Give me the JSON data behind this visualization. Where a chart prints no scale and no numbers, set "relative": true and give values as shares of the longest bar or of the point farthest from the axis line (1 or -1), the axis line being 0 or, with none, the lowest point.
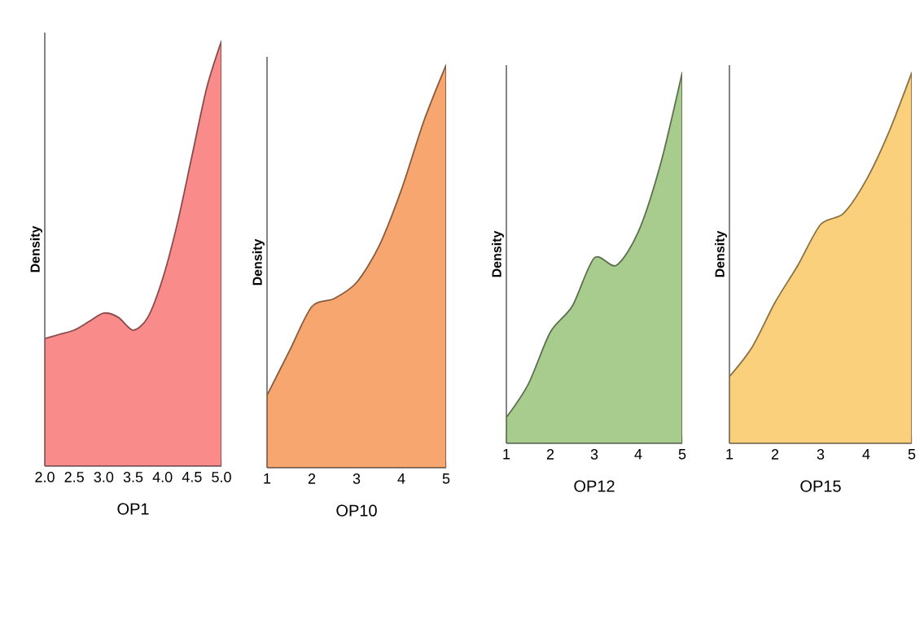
{
  "chart_data": [
    {
      "type": "area",
      "relative": true,
      "xlabel": "OP1",
      "ylabel": "Density",
      "color": "#f98b8b",
      "xlim": [
        2,
        5
      ],
      "xticks": [
        {
          "value": 2,
          "label": "2.0"
        },
        {
          "value": 2.5,
          "label": "2.5"
        },
        {
          "value": 3,
          "label": "3.0"
        },
        {
          "value": 3.5,
          "label": "3.5"
        },
        {
          "value": 4,
          "label": "4.0"
        },
        {
          "value": 4.5,
          "label": "4.5"
        },
        {
          "value": 5,
          "label": "5.0"
        }
      ],
      "x": [
        2,
        2.25,
        2.5,
        2.75,
        3,
        3.25,
        3.5,
        3.75,
        4,
        4.25,
        4.5,
        4.75,
        5
      ],
      "values": [
        0.3,
        0.31,
        0.32,
        0.34,
        0.36,
        0.35,
        0.32,
        0.35,
        0.44,
        0.57,
        0.73,
        0.89,
        1
      ]
    },
    {
      "type": "area",
      "relative": true,
      "xlabel": "OP10",
      "ylabel": "Density",
      "color": "#f6a66e",
      "xlim": [
        1,
        5
      ],
      "xticks": [
        1,
        2,
        3,
        4,
        5
      ],
      "x": [
        1,
        1.5,
        2,
        2.5,
        3,
        3.5,
        4,
        4.5,
        5
      ],
      "values": [
        0.18,
        0.29,
        0.4,
        0.42,
        0.46,
        0.55,
        0.69,
        0.86,
        1
      ]
    },
    {
      "type": "area",
      "relative": true,
      "xlabel": "OP12",
      "ylabel": "Density",
      "color": "#a7cc8e",
      "xlim": [
        1,
        5
      ],
      "xticks": [
        1,
        2,
        3,
        4,
        5
      ],
      "x": [
        1,
        1.5,
        2,
        2.5,
        3,
        3.5,
        4,
        4.5,
        5
      ],
      "values": [
        0.07,
        0.16,
        0.3,
        0.37,
        0.5,
        0.48,
        0.57,
        0.75,
        1
      ]
    },
    {
      "type": "area",
      "relative": true,
      "xlabel": "OP15",
      "ylabel": "Density",
      "color": "#fbd07c",
      "xlim": [
        1,
        5
      ],
      "xticks": [
        1,
        2,
        3,
        4,
        5
      ],
      "x": [
        1,
        1.5,
        2,
        2.5,
        3,
        3.5,
        4,
        4.5,
        5
      ],
      "values": [
        0.18,
        0.26,
        0.38,
        0.48,
        0.59,
        0.62,
        0.71,
        0.84,
        1
      ]
    }
  ]
}
